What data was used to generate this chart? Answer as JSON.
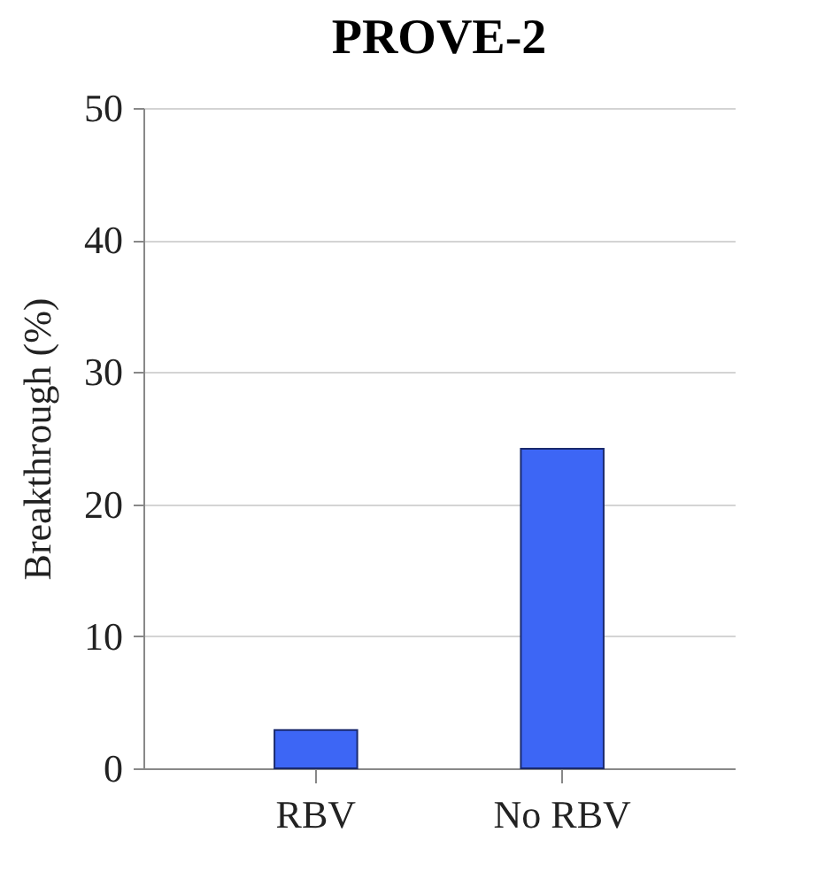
{
  "chart_data": {
    "type": "bar",
    "title": "PROVE-2",
    "ylabel": "Breakthrough (%)",
    "categories": [
      "RBV",
      "No RBV"
    ],
    "values": [
      2.9,
      24.2
    ],
    "color": "#3d66f5",
    "ylim": [
      0,
      50
    ],
    "yticks": [
      0,
      10,
      20,
      30,
      40,
      50
    ],
    "grid": "y"
  }
}
